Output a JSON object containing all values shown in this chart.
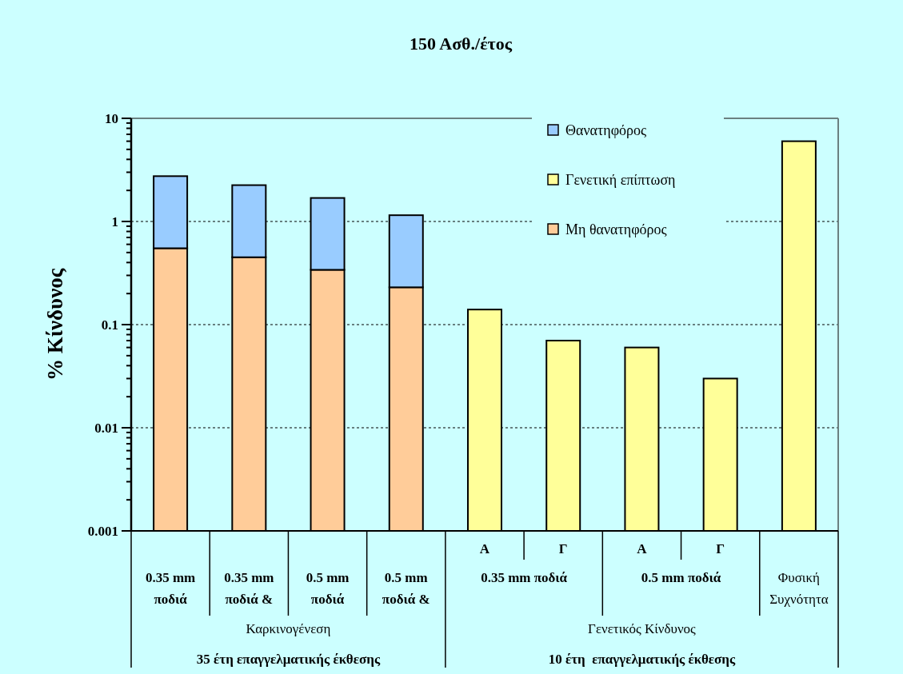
{
  "chart_data": {
    "type": "bar",
    "title": "150 Ασθ./έτος",
    "ylabel": "% Κίνδυνος",
    "categories": [
      "0.35 mm ποδιά",
      "0.35 mm ποδιά &",
      "0.5 mm ποδιά",
      "0.5 mm ποδιά &",
      "Α",
      "Γ",
      "Α",
      "Γ",
      "Φυσική Συχνότητα"
    ],
    "series": [
      {
        "name": "Μη θανατηφόρος",
        "color": "#ffcc99",
        "values": [
          0.55,
          0.45,
          0.34,
          0.23,
          null,
          null,
          null,
          null,
          null
        ]
      },
      {
        "name": "Γενετική επίπτωση",
        "color": "#ffff99",
        "values": [
          null,
          null,
          null,
          null,
          0.14,
          0.07,
          0.06,
          0.03,
          6
        ]
      },
      {
        "name": "Θανατηφόρος",
        "color": "#99ccff",
        "values": [
          2.2,
          1.8,
          1.35,
          0.92,
          null,
          null,
          null,
          null,
          null
        ]
      }
    ],
    "stacked": true,
    "log": true,
    "ylim": [
      0.001,
      10
    ],
    "yticks": [
      0.001,
      {
        "value": 0.002,
        "label": null
      },
      {
        "value": 0.003,
        "label": null
      },
      {
        "value": 0.004,
        "label": null
      },
      {
        "value": 0.005,
        "label": null
      },
      {
        "value": 0.006,
        "label": null
      },
      {
        "value": 0.007,
        "label": null
      },
      {
        "value": 0.008,
        "label": null
      },
      {
        "value": 0.009,
        "label": null
      },
      0.01,
      {
        "value": 0.02,
        "label": null
      },
      {
        "value": 0.03,
        "label": null
      },
      {
        "value": 0.04,
        "label": null
      },
      {
        "value": 0.05,
        "label": null
      },
      {
        "value": 0.06,
        "label": null
      },
      {
        "value": 0.07,
        "label": null
      },
      {
        "value": 0.08,
        "label": null
      },
      {
        "value": 0.09,
        "label": null
      },
      0.1,
      {
        "value": 0.2,
        "label": null
      },
      {
        "value": 0.3,
        "label": null
      },
      {
        "value": 0.4,
        "label": null
      },
      {
        "value": 0.5,
        "label": null
      },
      {
        "value": 0.6,
        "label": null
      },
      {
        "value": 0.7,
        "label": null
      },
      {
        "value": 0.8,
        "label": null
      },
      {
        "value": 0.9,
        "label": null
      },
      1,
      {
        "value": 2,
        "label": null
      },
      {
        "value": 3,
        "label": null
      },
      {
        "value": 4,
        "label": null
      },
      {
        "value": 5,
        "label": null
      },
      {
        "value": 6,
        "label": null
      },
      {
        "value": 7,
        "label": null
      },
      {
        "value": 8,
        "label": null
      },
      {
        "value": 9,
        "label": null
      },
      10
    ],
    "grid": "y",
    "legend": "top right",
    "annotations": [
      "0.35 mm ποδιά",
      "0.5 mm ποδιά",
      "Καρκινογένεση",
      "Γενετικός Κίνδυνος",
      "35 έτη επαγγελματικής έκθεσης",
      "10 έτη  επαγγελματικής έκθεσης"
    ]
  }
}
